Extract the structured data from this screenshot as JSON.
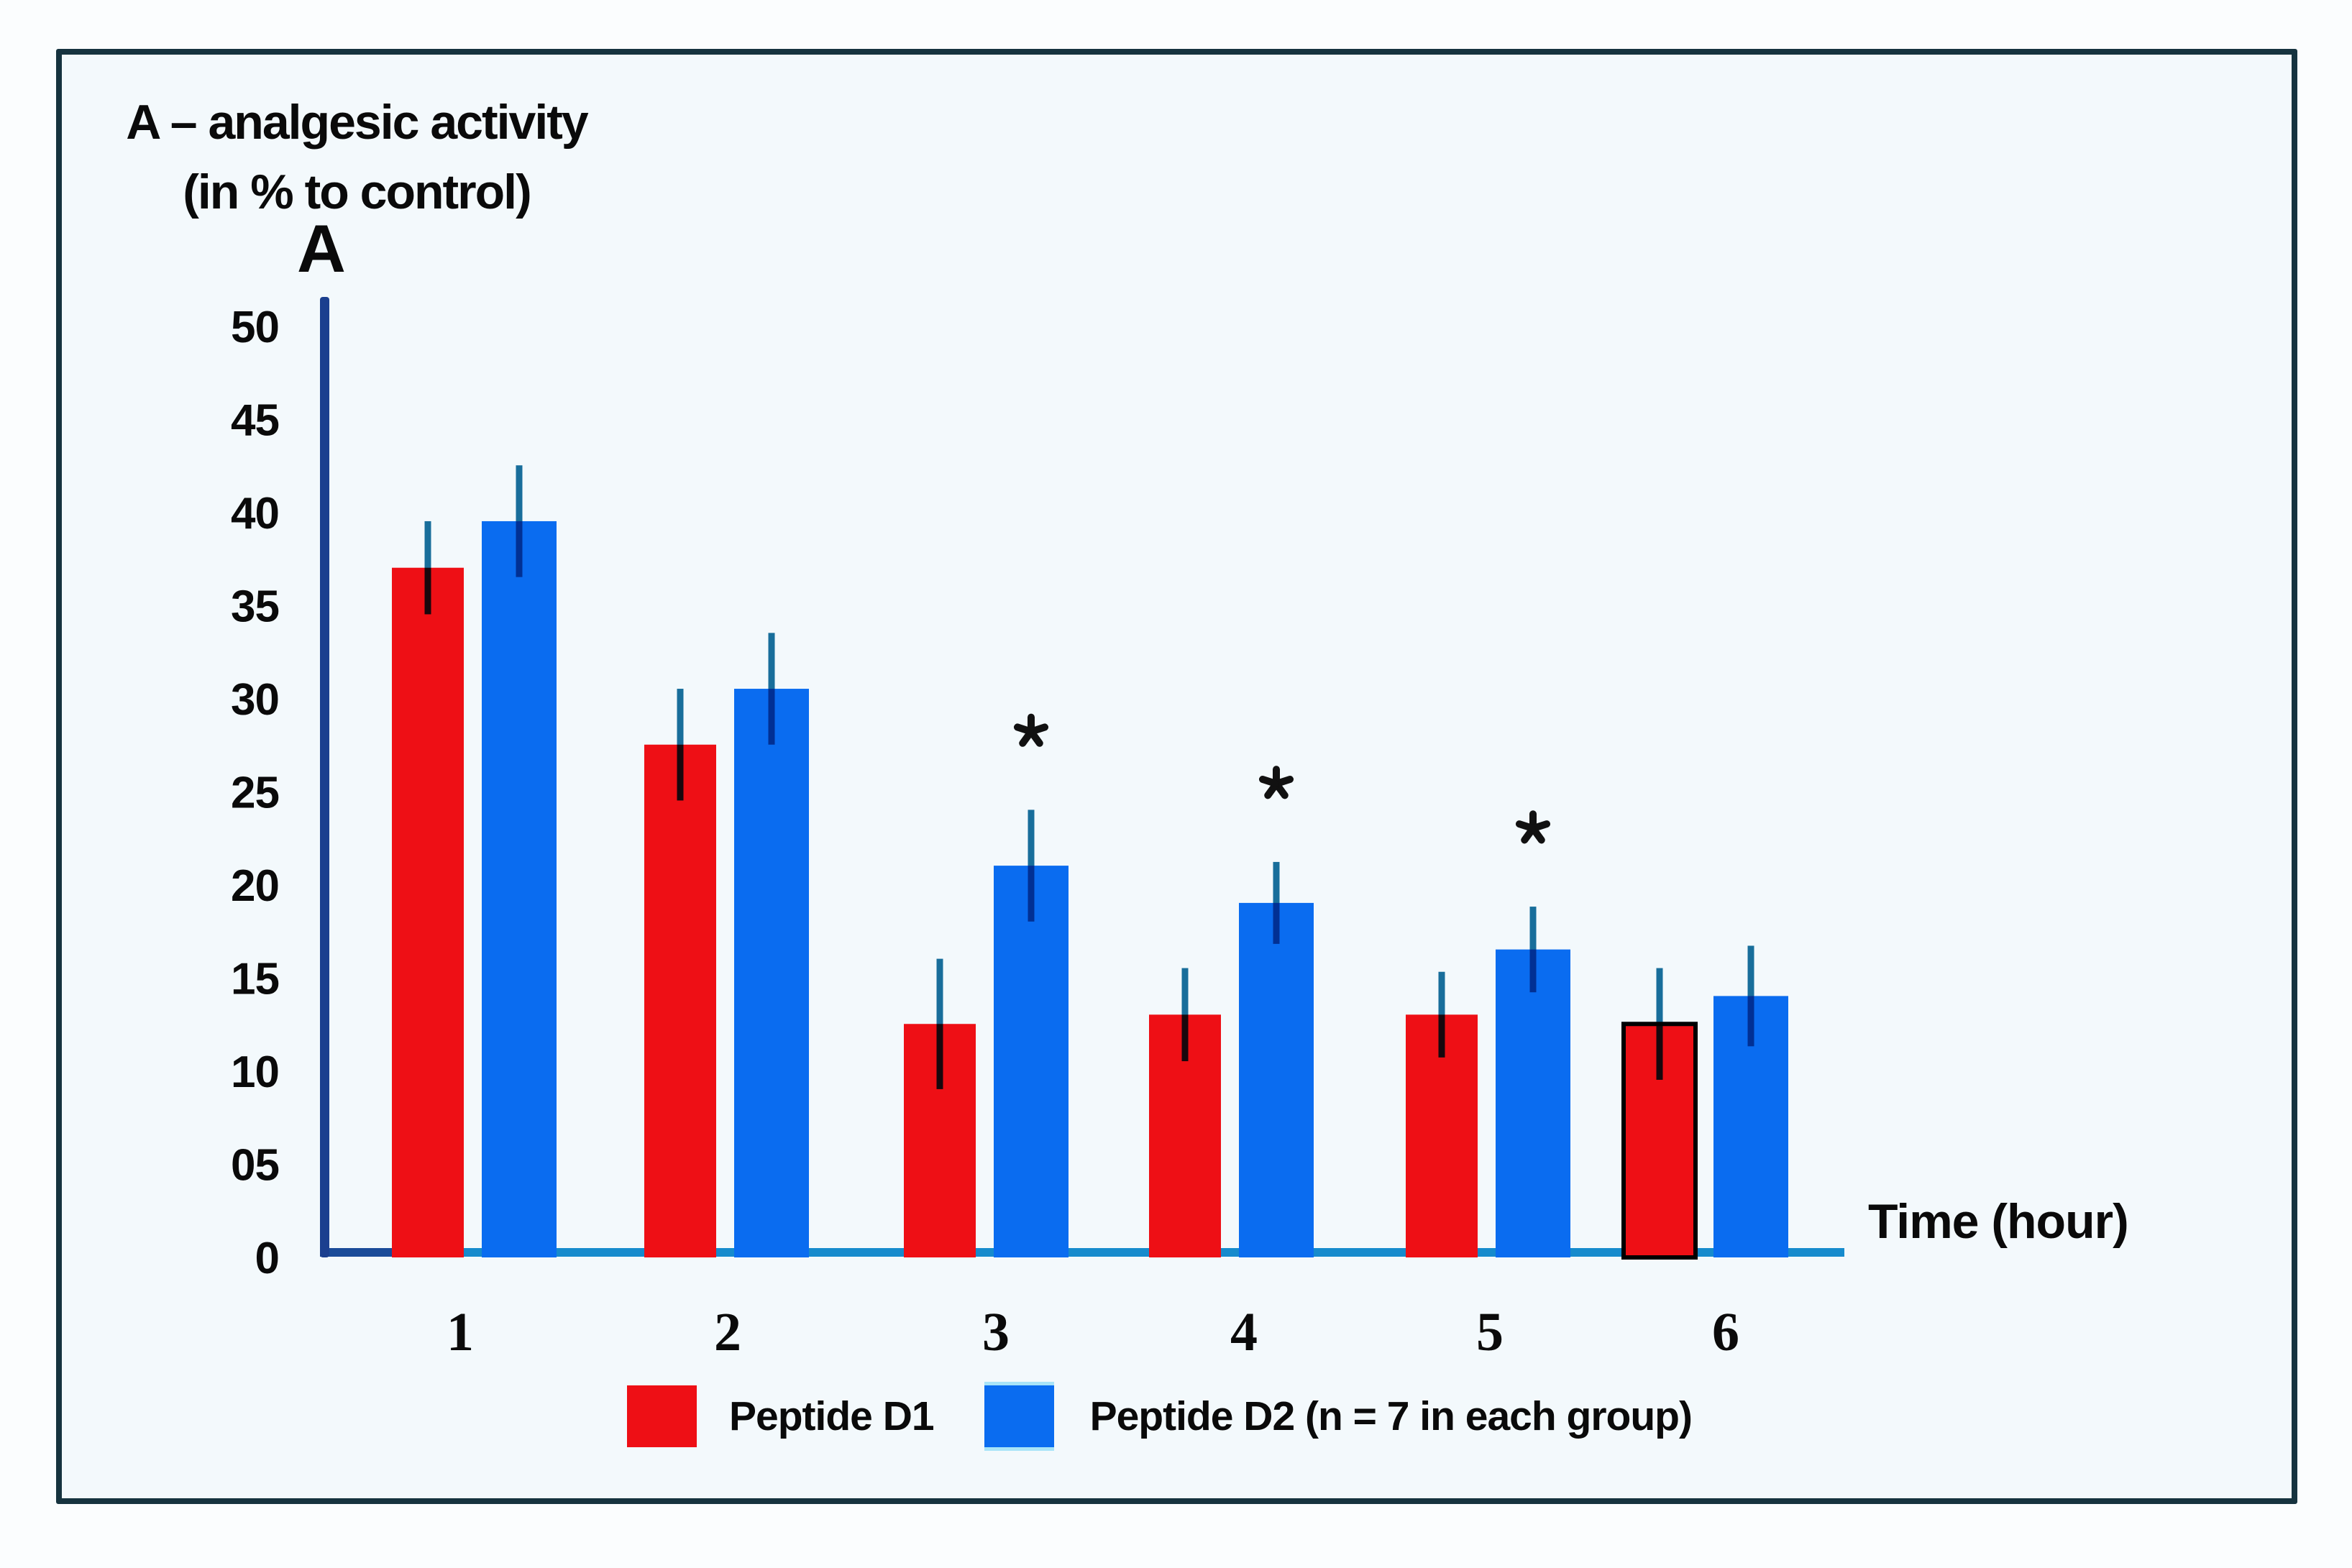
{
  "title": {
    "line1": "A – analgesic activity",
    "line2": "(in % to control)"
  },
  "colors": {
    "frame_border": "#16333f",
    "background": "#f3f9fc",
    "y_axis_line": "#1b3f8f",
    "x_baseline": "#168bcd",
    "error_bar": "#19719d",
    "peptide_d1_red": "#ee0f15",
    "peptide_d2_blue": "#0a6cf0",
    "significance_star": "#111111",
    "text": "#0a0a0a"
  },
  "legend": {
    "items": [
      {
        "label": "Peptide D1",
        "color": "#ee0f15"
      },
      {
        "label": "Peptide D2 (n = 7 in each group)",
        "color": "#0a6cf0"
      }
    ]
  },
  "chart_data": {
    "type": "bar",
    "title": "A – analgesic activity (in % to control)",
    "ylabel": "A",
    "xlabel": "Time (hour)",
    "categories": [
      "1",
      "2",
      "3",
      "4",
      "5",
      "6"
    ],
    "y_tick_labels": [
      "50",
      "45",
      "40",
      "35",
      "30",
      "25",
      "20",
      "15",
      "10",
      "05",
      "0"
    ],
    "y_tick_values": [
      50,
      45,
      40,
      35,
      30,
      25,
      20,
      15,
      10,
      5,
      0
    ],
    "ylim": [
      0,
      52
    ],
    "grid": false,
    "legend_position": "bottom",
    "series": [
      {
        "name": "Peptide D1",
        "color": "#ee0f15",
        "values": [
          37,
          27.5,
          12.5,
          13,
          13,
          12.5
        ],
        "errors": [
          2.5,
          3,
          3.5,
          2.5,
          2.3,
          3
        ]
      },
      {
        "name": "Peptide D2 (n = 7 in each group)",
        "color": "#0a6cf0",
        "values": [
          39.5,
          30.5,
          21,
          19,
          16.5,
          14
        ],
        "errors": [
          3,
          3,
          3,
          2.2,
          2.3,
          2.7
        ]
      }
    ],
    "significance": {
      "marker": "*",
      "on_series": "Peptide D2",
      "categories": [
        "3",
        "4",
        "5"
      ]
    },
    "annotations": {
      "outlined_bar": {
        "series": "Peptide D1",
        "category": "6",
        "stroke": "#000000"
      }
    }
  }
}
